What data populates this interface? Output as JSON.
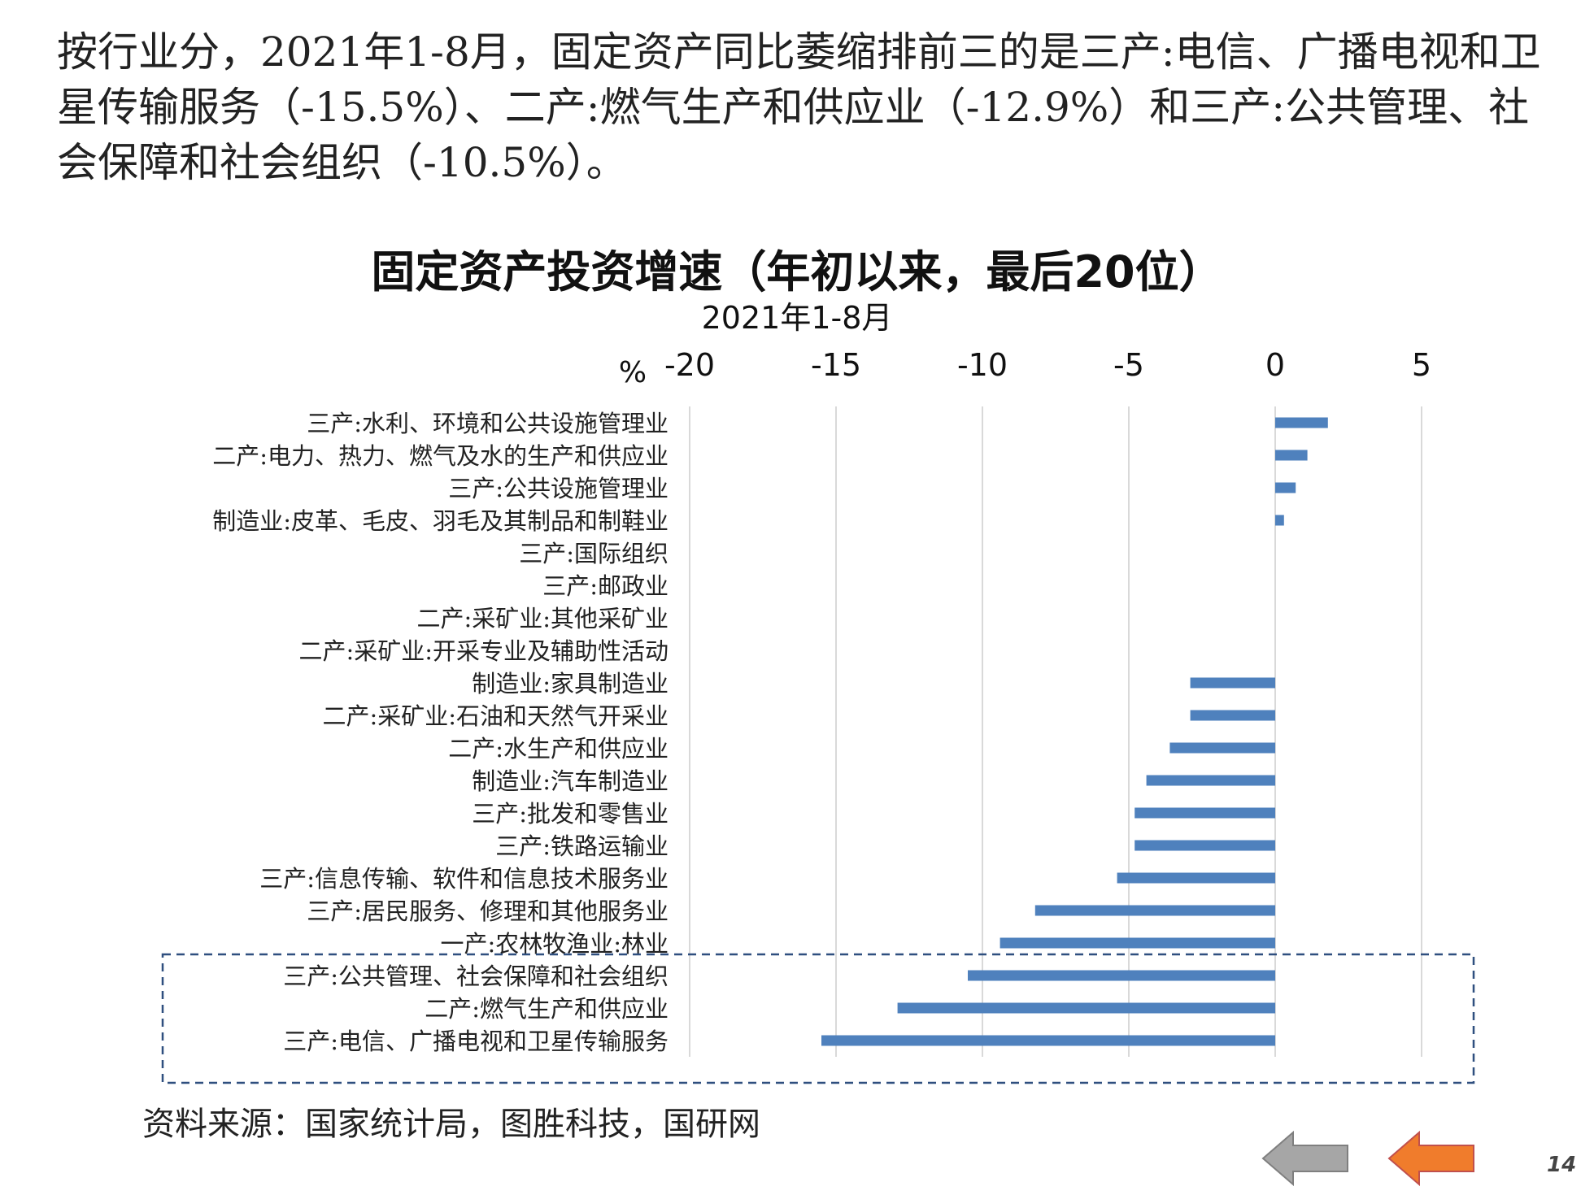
{
  "slide_text": "按行业分，2021年1-8月，固定资产同比萎缩排前三的是三产:电信、广播电视和卫星传输服务（-15.5%）、二产:燃气生产和供应业（-12.9%）和三产:公共管理、社会保障和社会组织（-10.5%）。",
  "source_note": "资料来源：国家统计局，图胜科技，国研网",
  "page_number": "14",
  "colors": {
    "bar": "#4f81bd",
    "grid": "#d9d9d9",
    "highlight_border": "#2f4f7f",
    "nav_back": "#a6a6a6",
    "nav_forward": "#f07c2c"
  },
  "icons": {
    "back": "left-arrow-icon",
    "forward": "left-arrow-icon"
  },
  "chart_data": {
    "type": "bar",
    "orientation": "horizontal",
    "title": "固定资产投资增速（年初以来，最后20位）",
    "subtitle": "2021年1-8月",
    "unit_label": "%",
    "xlim": [
      -20,
      5
    ],
    "x_ticks": [
      "-20",
      "-15",
      "-10",
      "-5",
      "0",
      "5"
    ],
    "x_tick_values": [
      -20,
      -15,
      -10,
      -5,
      0,
      5
    ],
    "gridlines": true,
    "categories": [
      "三产:水利、环境和公共设施管理业",
      "二产:电力、热力、燃气及水的生产和供应业",
      "三产:公共设施管理业",
      "制造业:皮革、毛皮、羽毛及其制品和制鞋业",
      "三产:国际组织",
      "三产:邮政业",
      "二产:采矿业:其他采矿业",
      "二产:采矿业:开采专业及辅助性活动",
      "制造业:家具制造业",
      "二产:采矿业:石油和天然气开采业",
      "二产:水生产和供应业",
      "制造业:汽车制造业",
      "三产:批发和零售业",
      "三产:铁路运输业",
      "三产:信息传输、软件和信息技术服务业",
      "三产:居民服务、修理和其他服务业",
      "一产:农林牧渔业:林业",
      "三产:公共管理、社会保障和社会组织",
      "二产:燃气生产和供应业",
      "三产:电信、广播电视和卫星传输服务"
    ],
    "values": [
      1.8,
      1.1,
      0.7,
      0.3,
      0,
      0,
      0,
      0,
      -2.9,
      -2.9,
      -3.6,
      -4.4,
      -4.8,
      -4.8,
      -5.4,
      -8.2,
      -9.4,
      -10.5,
      -12.9,
      -15.5
    ],
    "highlighted_categories": [
      "三产:公共管理、社会保障和社会组织",
      "二产:燃气生产和供应业",
      "三产:电信、广播电视和卫星传输服务"
    ]
  }
}
